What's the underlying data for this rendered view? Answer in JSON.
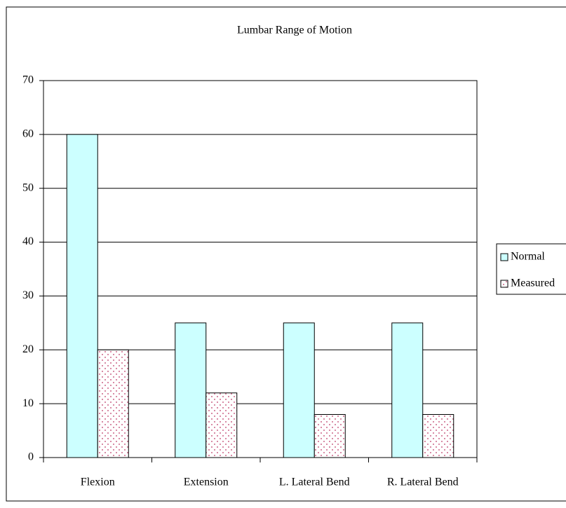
{
  "chart_data": {
    "type": "bar",
    "title": "Lumbar Range of Motion",
    "categories": [
      "Flexion",
      "Extension",
      "L. Lateral Bend",
      "R. Lateral Bend"
    ],
    "series": [
      {
        "name": "Normal",
        "color": "#ccffff",
        "values": [
          60,
          25,
          25,
          25
        ]
      },
      {
        "name": "Measured",
        "color": "#cc6688",
        "values": [
          20,
          12,
          8,
          8
        ]
      }
    ],
    "ylim": [
      0,
      70
    ],
    "yticks": [
      0,
      10,
      20,
      30,
      40,
      50,
      60,
      70
    ],
    "grid": true,
    "legend": "right"
  }
}
